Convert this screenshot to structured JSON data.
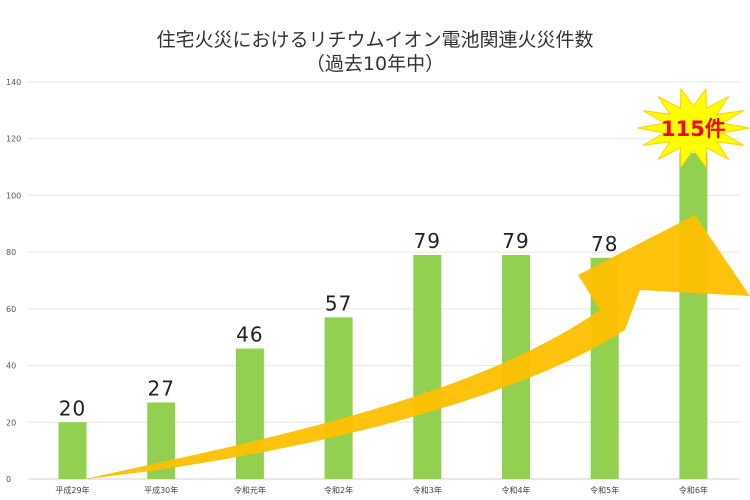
{
  "chart_data": {
    "type": "bar",
    "title": "住宅火災におけるリチウムイオン電池関連火災件数",
    "subtitle": "（過去10年中）",
    "categories": [
      "平成29年",
      "平成30年",
      "令和元年",
      "令和2年",
      "令和3年",
      "令和4年",
      "令和5年",
      "令和6年"
    ],
    "values": [
      20,
      27,
      46,
      57,
      79,
      79,
      78,
      115
    ],
    "data_labels": [
      "20",
      "27",
      "46",
      "57",
      "79",
      "79",
      "78",
      "115件"
    ],
    "ylim": [
      0,
      140
    ],
    "yticks": [
      0,
      20,
      40,
      60,
      80,
      100,
      120,
      140
    ],
    "grid": true,
    "xlabel": "",
    "ylabel": "",
    "colors": {
      "bar": "#92d050",
      "arrow": "#ffc000",
      "burst": "#ffff00",
      "highlight_text": "#ff0000",
      "grid": "#e6e6e6"
    },
    "annotations": [
      "increasing-trend-arrow",
      "starburst-highlight-last-value"
    ]
  }
}
